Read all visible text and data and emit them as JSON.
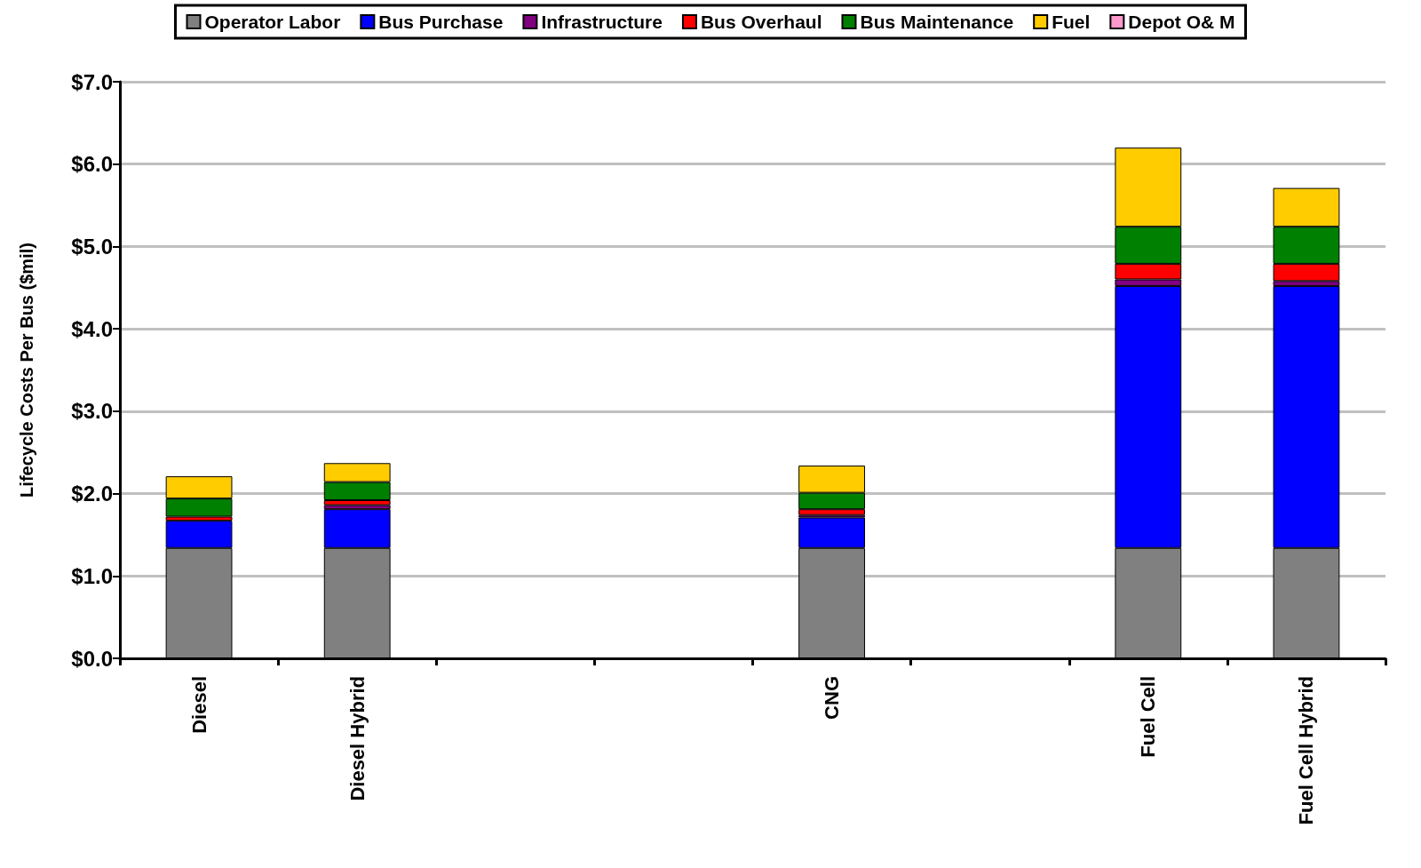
{
  "chart_data": {
    "type": "bar",
    "stacked": true,
    "ylabel": "Lifecycle Costs Per Bus ($mil)",
    "categories": [
      "Diesel",
      "Diesel Hybrid",
      null,
      null,
      "CNG",
      null,
      "Fuel Cell",
      "Fuel Cell Hybrid"
    ],
    "series": [
      {
        "name": "Operator Labor",
        "color": "#808080",
        "values": [
          1.34,
          1.34,
          null,
          null,
          1.34,
          null,
          1.34,
          1.34
        ]
      },
      {
        "name": "Bus Purchase",
        "color": "#0000ff",
        "values": [
          0.33,
          0.47,
          null,
          null,
          0.37,
          null,
          3.18,
          3.18
        ]
      },
      {
        "name": "Infrastructure",
        "color": "#800080",
        "values": [
          null,
          0.05,
          null,
          null,
          0.03,
          null,
          0.08,
          0.06
        ]
      },
      {
        "name": "Bus Overhaul",
        "color": "#ff0000",
        "values": [
          0.05,
          0.06,
          null,
          null,
          0.07,
          null,
          0.19,
          0.21
        ]
      },
      {
        "name": "Bus Maintenance",
        "color": "#008000",
        "values": [
          0.22,
          0.22,
          null,
          null,
          0.2,
          null,
          0.45,
          0.45
        ]
      },
      {
        "name": "Fuel",
        "color": "#ffcc00",
        "values": [
          0.27,
          0.23,
          null,
          null,
          0.33,
          null,
          0.96,
          0.47
        ]
      },
      {
        "name": "Depot O& M",
        "color": "#ff99cc",
        "values": [
          null,
          null,
          null,
          null,
          null,
          null,
          null,
          null
        ]
      }
    ],
    "ylim": [
      0,
      7
    ],
    "yticks": [
      {
        "value": 0,
        "label": "$0.0"
      },
      {
        "value": 1,
        "label": "$1.0"
      },
      {
        "value": 2,
        "label": "$2.0"
      },
      {
        "value": 3,
        "label": "$3.0"
      },
      {
        "value": 4,
        "label": "$4.0"
      },
      {
        "value": 5,
        "label": "$5.0"
      },
      {
        "value": 6,
        "label": "$6.0"
      },
      {
        "value": 7,
        "label": "$7.0"
      }
    ],
    "grid": "y",
    "legend": "top"
  }
}
